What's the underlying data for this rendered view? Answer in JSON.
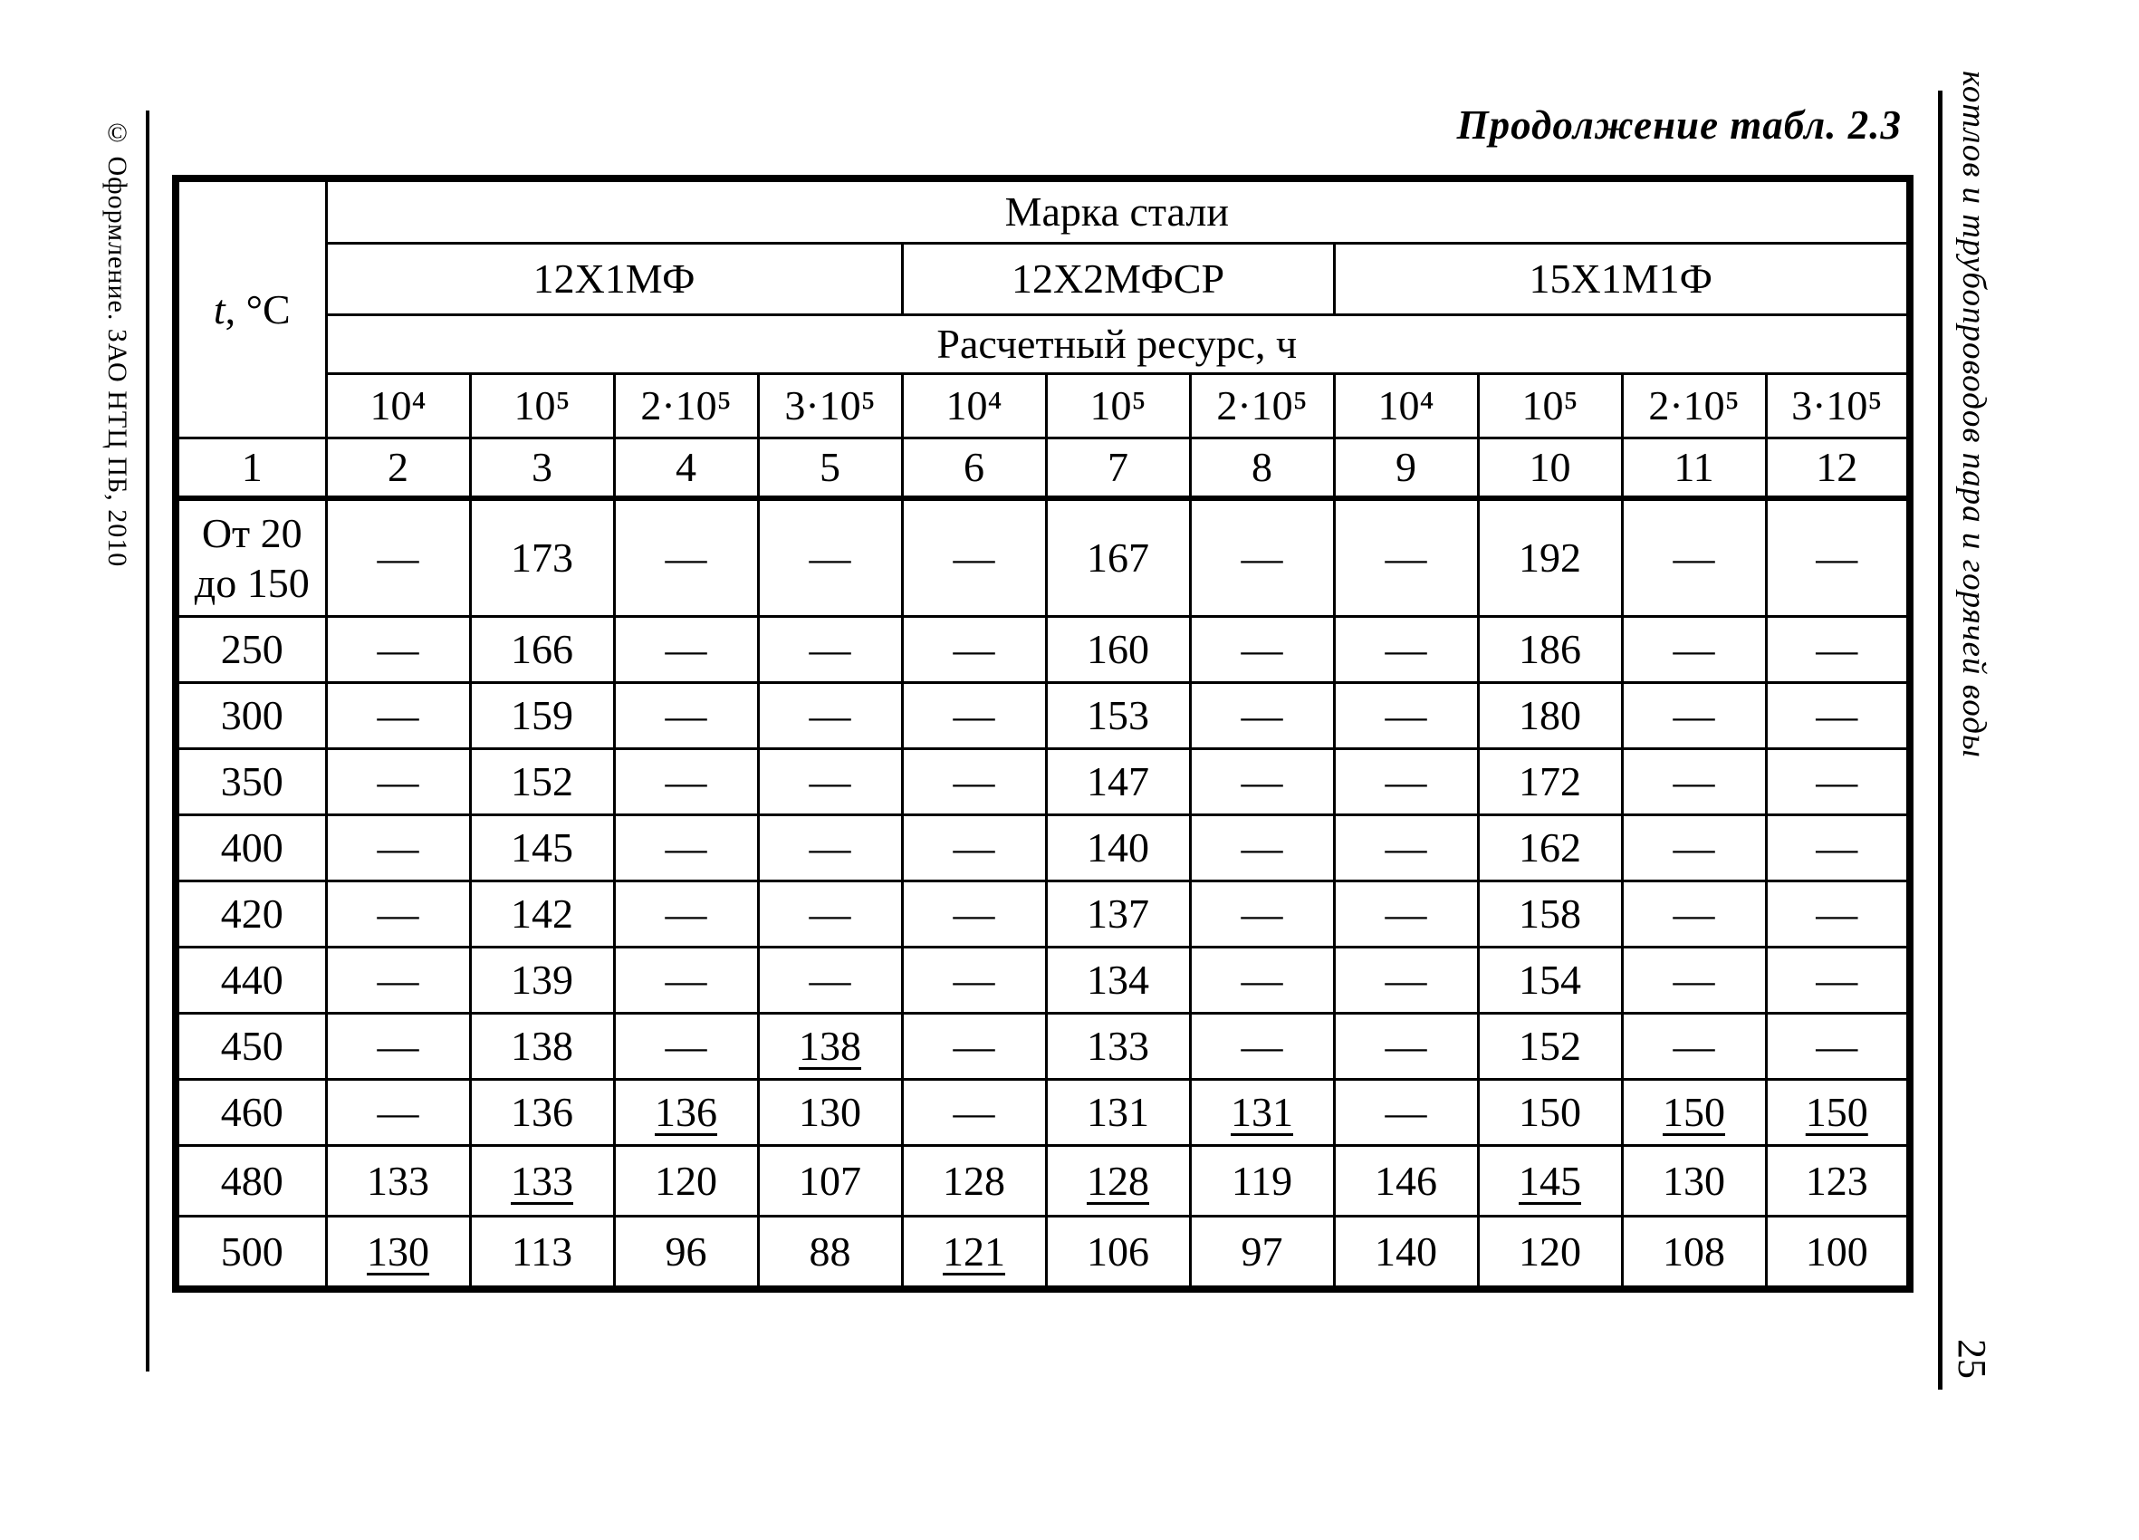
{
  "page": {
    "title": "Продолжение табл. 2.3",
    "copyright_note": "© Оформление. ЗАО НТЦ ПБ, 2010",
    "running_title": "котлов и трубопроводов пара и горячей воды",
    "page_number": "25"
  },
  "table": {
    "temp_header_italic": "t",
    "temp_header_rest": ", °C",
    "steel_grade_header": "Марка стали",
    "groups": [
      {
        "label": "12Х1МФ",
        "span": 4
      },
      {
        "label": "12Х2МФСР",
        "span": 3
      },
      {
        "label": "15Х1М1Ф",
        "span": 4
      }
    ],
    "resource_header": "Расчетный ресурс, ч",
    "resource_values": [
      "10⁴",
      "10⁵",
      "2·10⁵",
      "3·10⁵",
      "10⁴",
      "10⁵",
      "2·10⁵",
      "10⁴",
      "10⁵",
      "2·10⁵",
      "3·10⁵"
    ],
    "column_numbers": [
      "1",
      "2",
      "3",
      "4",
      "5",
      "6",
      "7",
      "8",
      "9",
      "10",
      "11",
      "12"
    ],
    "rows": [
      {
        "t": "От 20\nдо 150",
        "values": [
          "—",
          "173",
          "—",
          "—",
          "—",
          "167",
          "—",
          "—",
          "192",
          "—",
          "—"
        ],
        "underline": []
      },
      {
        "t": "250",
        "values": [
          "—",
          "166",
          "—",
          "—",
          "—",
          "160",
          "—",
          "—",
          "186",
          "—",
          "—"
        ],
        "underline": []
      },
      {
        "t": "300",
        "values": [
          "—",
          "159",
          "—",
          "—",
          "—",
          "153",
          "—",
          "—",
          "180",
          "—",
          "—"
        ],
        "underline": []
      },
      {
        "t": "350",
        "values": [
          "—",
          "152",
          "—",
          "—",
          "—",
          "147",
          "—",
          "—",
          "172",
          "—",
          "—"
        ],
        "underline": []
      },
      {
        "t": "400",
        "values": [
          "—",
          "145",
          "—",
          "—",
          "—",
          "140",
          "—",
          "—",
          "162",
          "—",
          "—"
        ],
        "underline": []
      },
      {
        "t": "420",
        "values": [
          "—",
          "142",
          "—",
          "—",
          "—",
          "137",
          "—",
          "—",
          "158",
          "—",
          "—"
        ],
        "underline": []
      },
      {
        "t": "440",
        "values": [
          "—",
          "139",
          "—",
          "—",
          "—",
          "134",
          "—",
          "—",
          "154",
          "—",
          "—"
        ],
        "underline": []
      },
      {
        "t": "450",
        "values": [
          "—",
          "138",
          "—",
          "138",
          "—",
          "133",
          "—",
          "—",
          "152",
          "—",
          "—"
        ],
        "underline": [
          3
        ]
      },
      {
        "t": "460",
        "values": [
          "—",
          "136",
          "136",
          "130",
          "—",
          "131",
          "131",
          "—",
          "150",
          "150",
          "150"
        ],
        "underline": [
          2,
          6,
          9,
          10
        ]
      },
      {
        "t": "480",
        "values": [
          "133",
          "133",
          "120",
          "107",
          "128",
          "128",
          "119",
          "146",
          "145",
          "130",
          "123"
        ],
        "underline": [
          1,
          5,
          8
        ]
      },
      {
        "t": "500",
        "values": [
          "130",
          "113",
          "96",
          "88",
          "121",
          "106",
          "97",
          "140",
          "120",
          "108",
          "100"
        ],
        "underline": [
          0,
          4
        ]
      }
    ]
  }
}
